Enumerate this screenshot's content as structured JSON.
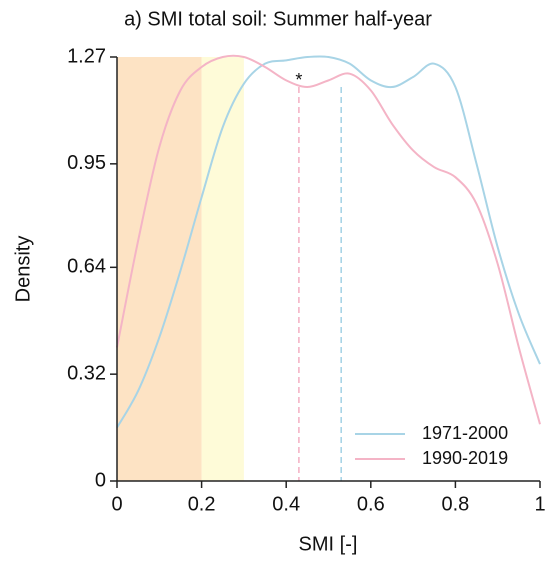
{
  "chart_data": {
    "type": "line",
    "title": "a) SMI total soil: Summer half-year",
    "xlabel": "SMI [-]",
    "ylabel": "Density",
    "x": [
      0,
      0.05,
      0.1,
      0.15,
      0.2,
      0.25,
      0.3,
      0.35,
      0.4,
      0.45,
      0.5,
      0.55,
      0.6,
      0.65,
      0.7,
      0.75,
      0.8,
      0.85,
      0.9,
      0.95,
      1
    ],
    "series": [
      {
        "name": "1971-2000",
        "color": "#a8d4e6",
        "values": [
          0.16,
          0.27,
          0.43,
          0.63,
          0.85,
          1.06,
          1.19,
          1.25,
          1.26,
          1.27,
          1.27,
          1.25,
          1.2,
          1.18,
          1.21,
          1.25,
          1.18,
          0.95,
          0.7,
          0.5,
          0.35
        ],
        "mean": 0.53
      },
      {
        "name": "1990-2019",
        "color": "#f4b4c6",
        "values": [
          0.4,
          0.72,
          1.0,
          1.17,
          1.24,
          1.27,
          1.27,
          1.24,
          1.2,
          1.18,
          1.2,
          1.22,
          1.17,
          1.07,
          0.99,
          0.94,
          0.91,
          0.83,
          0.65,
          0.4,
          0.17
        ],
        "mean": 0.43
      }
    ],
    "spans": [
      {
        "range": [
          0,
          0.2
        ],
        "color": "#fde3c4"
      },
      {
        "range": [
          0.2,
          0.3
        ],
        "color": "#fefbd8"
      }
    ],
    "annotation": "*",
    "xlim": [
      0,
      1
    ],
    "xticks": [
      0,
      0.2,
      0.4,
      0.6,
      0.8,
      1
    ],
    "ylim": [
      0,
      1.27
    ],
    "yticks": [
      0,
      0.32,
      0.64,
      0.95,
      1.27
    ],
    "legend": "lower right",
    "grid": false
  }
}
